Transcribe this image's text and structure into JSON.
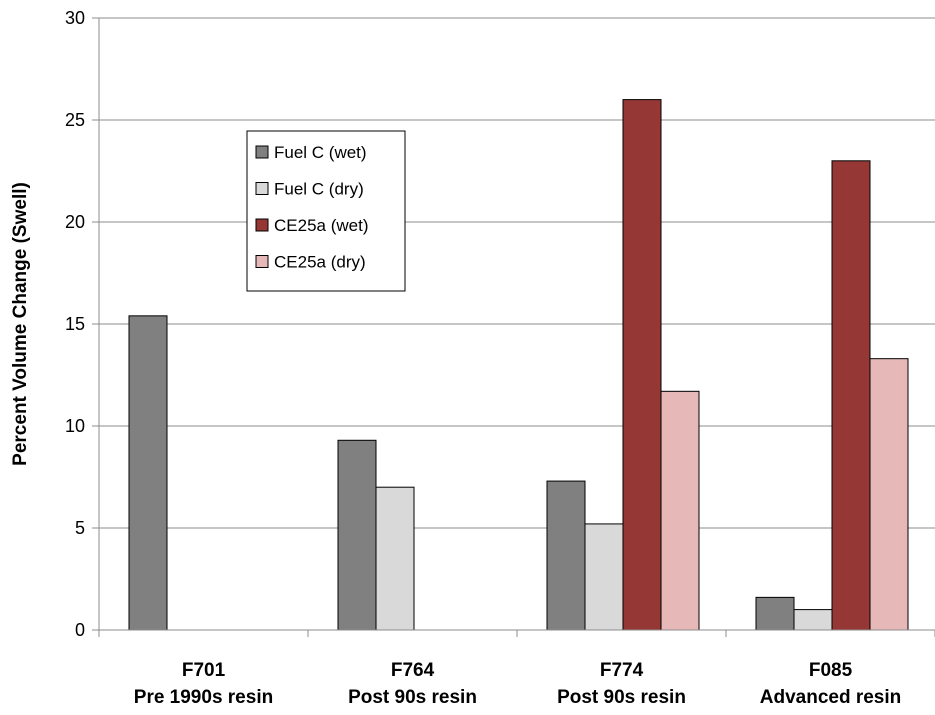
{
  "chart_data": {
    "type": "bar",
    "title": "",
    "xlabel": "",
    "ylabel": "Percent Volume Change (Swell)",
    "ylim": [
      0,
      30
    ],
    "yticks": [
      0,
      5,
      10,
      15,
      20,
      25,
      30
    ],
    "grid": true,
    "legend_position": "upper-left-inside",
    "categories": [
      {
        "line1": "F701",
        "line2": "Pre 1990s resin"
      },
      {
        "line1": "F764",
        "line2": "Post 90s resin"
      },
      {
        "line1": "F774",
        "line2": "Post 90s resin"
      },
      {
        "line1": "F085",
        "line2": "Advanced resin"
      }
    ],
    "series": [
      {
        "name": "Fuel C (wet)",
        "color": "#808080",
        "values": [
          15.4,
          9.3,
          7.3,
          1.6
        ]
      },
      {
        "name": "Fuel C (dry)",
        "color": "#d9d9d9",
        "values": [
          0,
          7.0,
          5.2,
          1.0
        ]
      },
      {
        "name": "CE25a (wet)",
        "color": "#953735",
        "values": [
          0,
          0,
          26.0,
          23.0
        ]
      },
      {
        "name": "CE25a (dry)",
        "color": "#e6b9b8",
        "values": [
          0,
          0,
          11.7,
          13.3
        ]
      }
    ]
  }
}
